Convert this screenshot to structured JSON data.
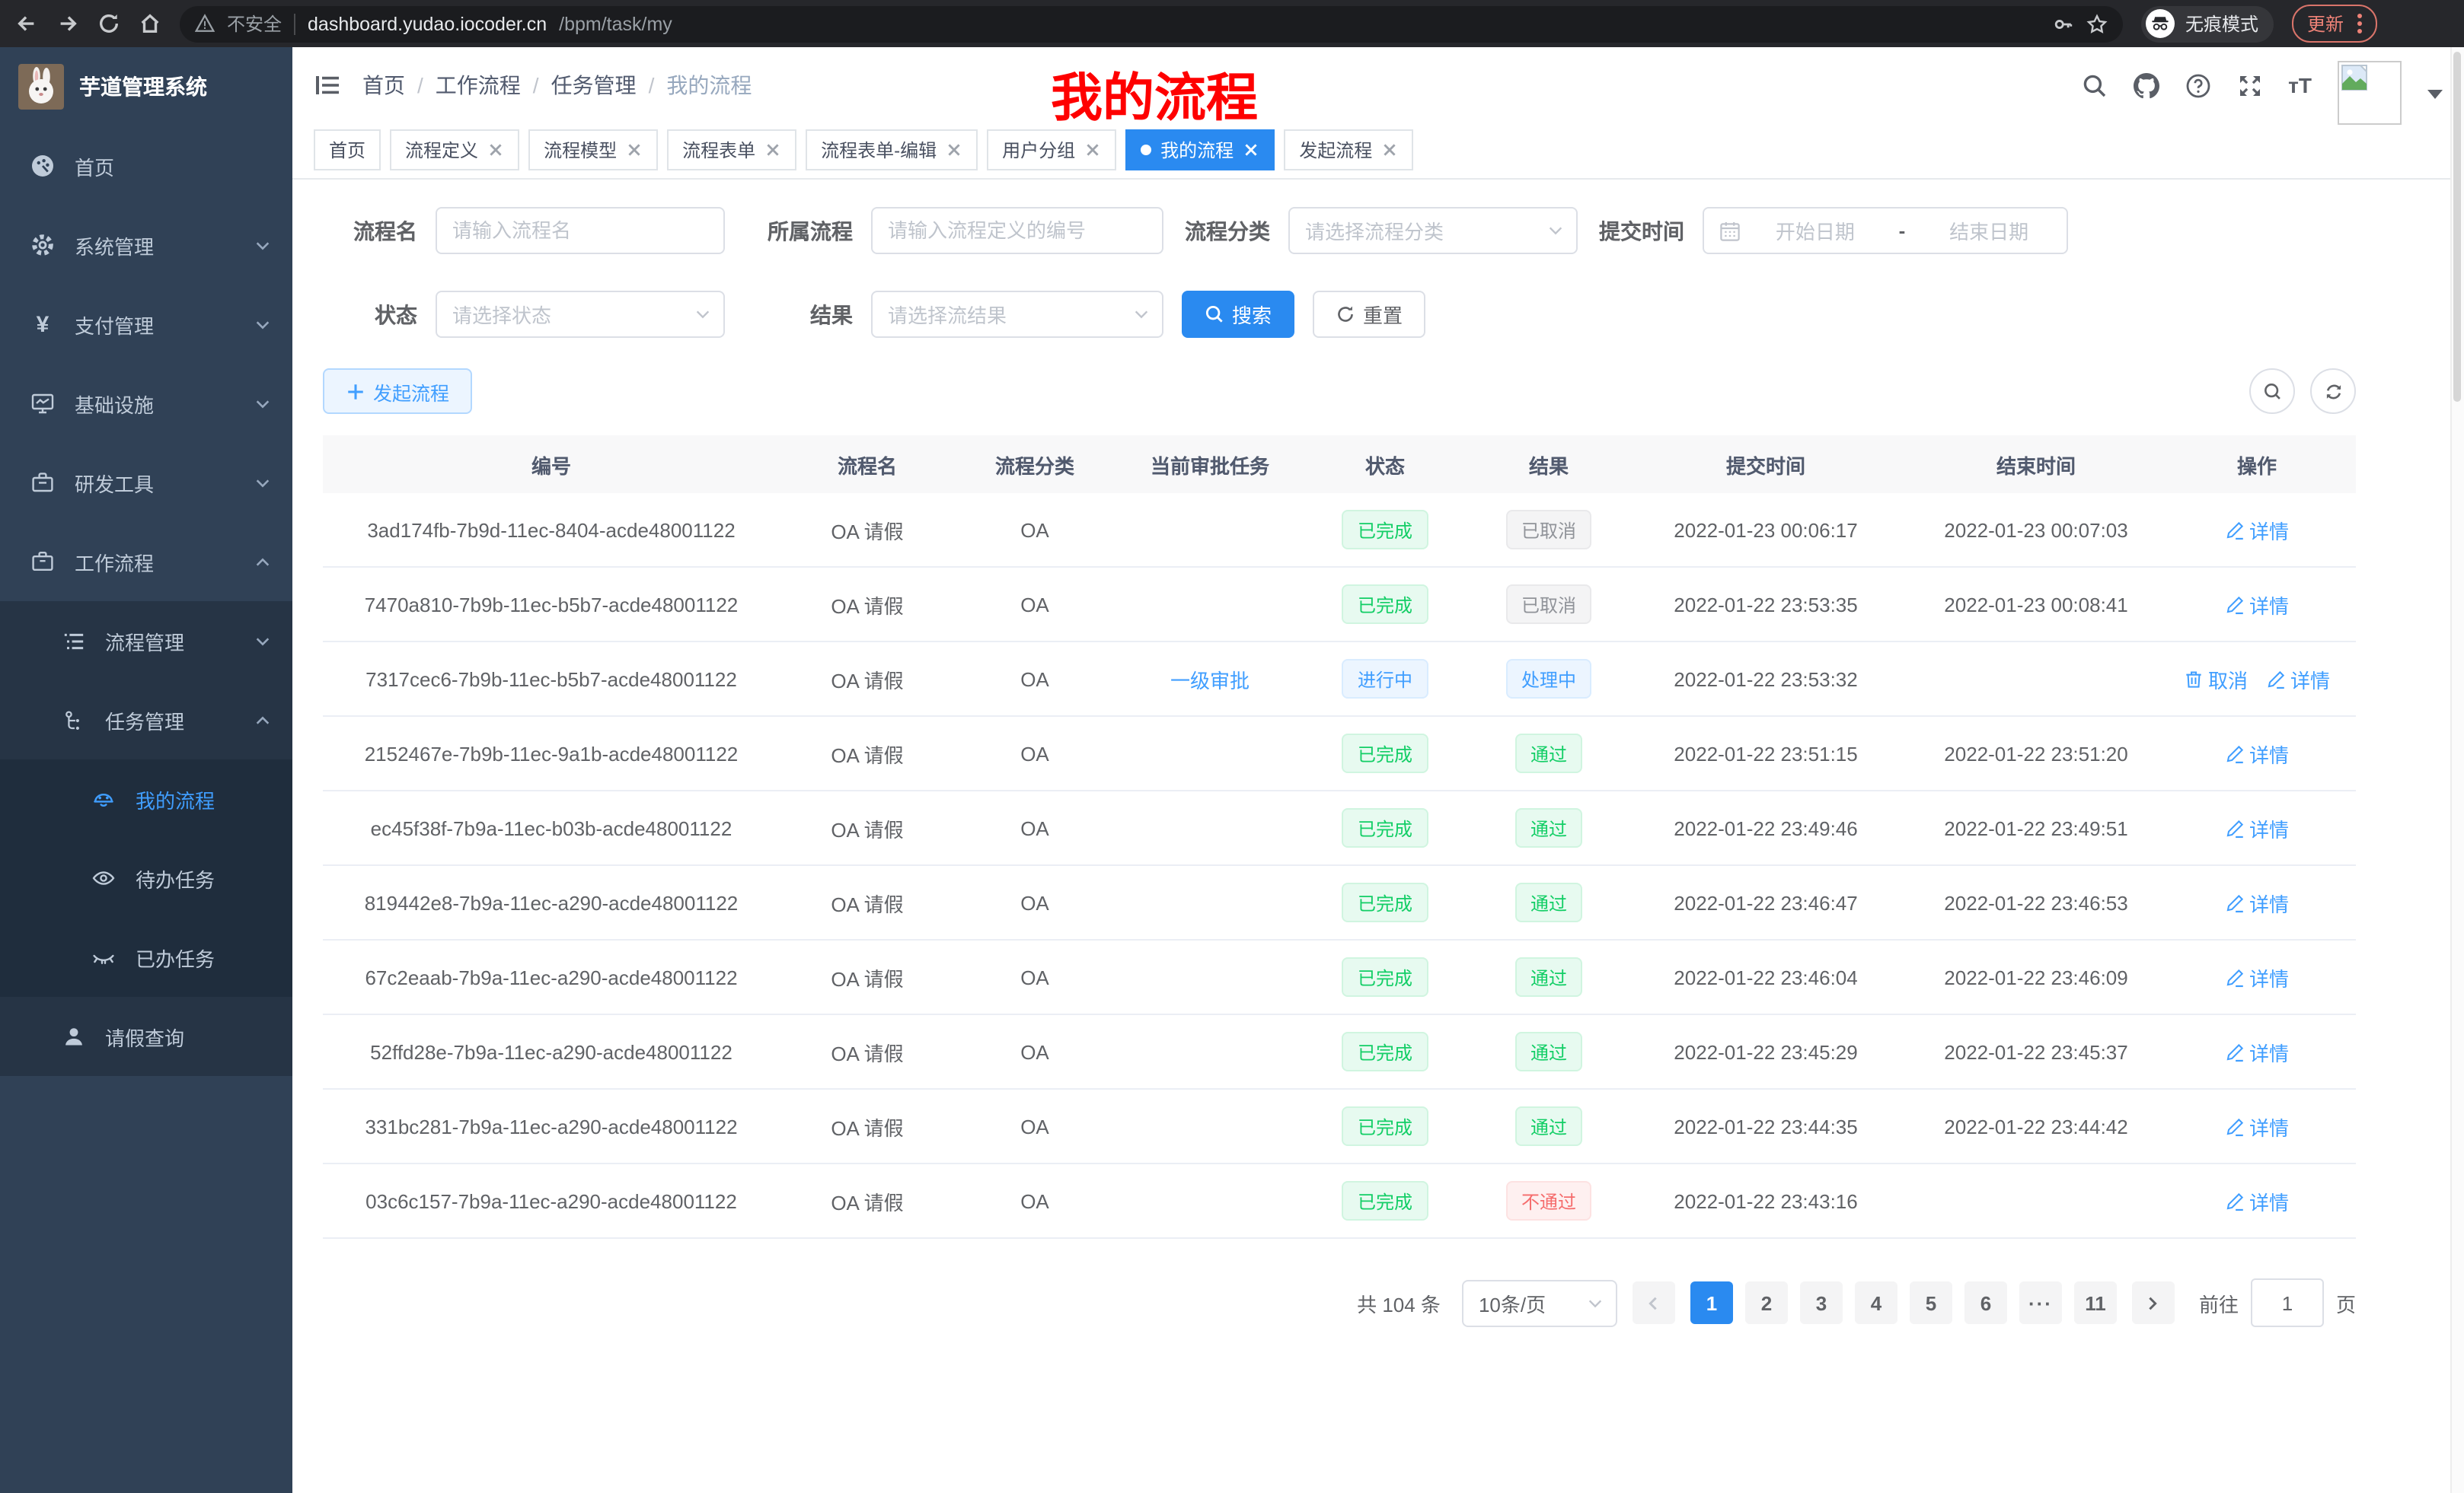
{
  "colors": {
    "primary": "#409eff",
    "tab_active": "#2a8af0",
    "success": "#13ce66",
    "danger": "#f56c6c",
    "info": "#909399",
    "annotation_red": "#fe0000",
    "sidebar_bg": "#304156",
    "submenu_bg": "#263445",
    "submenu2_bg": "#1f2d3d"
  },
  "browser": {
    "security_label": "不安全",
    "url_host": "dashboard.yudao.iocoder.cn",
    "url_path": "/bpm/task/my",
    "incognito_label": "无痕模式",
    "update_label": "更新"
  },
  "sidebar": {
    "app_title": "芋道管理系统",
    "menu": [
      {
        "label": "首页",
        "icon": "dashboard-icon"
      },
      {
        "label": "系统管理",
        "icon": "gear-icon"
      },
      {
        "label": "支付管理",
        "icon": "yen-icon"
      },
      {
        "label": "基础设施",
        "icon": "monitor-icon"
      },
      {
        "label": "研发工具",
        "icon": "toolbox-icon"
      },
      {
        "label": "工作流程",
        "icon": "briefcase-icon"
      },
      {
        "label": "流程管理",
        "icon": "list-icon"
      },
      {
        "label": "任务管理",
        "icon": "tree-icon"
      },
      {
        "label": "我的流程",
        "icon": "robot-icon",
        "active": true
      },
      {
        "label": "待办任务",
        "icon": "eye-icon"
      },
      {
        "label": "已办任务",
        "icon": "eye-closed-icon"
      },
      {
        "label": "请假查询",
        "icon": "user-icon"
      }
    ]
  },
  "header": {
    "breadcrumb": [
      "首页",
      "工作流程",
      "任务管理",
      "我的流程"
    ],
    "annotation": "我的流程"
  },
  "tabs": [
    {
      "label": "首页"
    },
    {
      "label": "流程定义"
    },
    {
      "label": "流程模型"
    },
    {
      "label": "流程表单"
    },
    {
      "label": "流程表单-编辑"
    },
    {
      "label": "用户分组"
    },
    {
      "label": "我的流程",
      "active": true
    },
    {
      "label": "发起流程"
    }
  ],
  "filters": {
    "name_label": "流程名",
    "name_placeholder": "请输入流程名",
    "definition_label": "所属流程",
    "definition_placeholder": "请输入流程定义的编号",
    "category_label": "流程分类",
    "category_placeholder": "请选择流程分类",
    "time_label": "提交时间",
    "date_start_placeholder": "开始日期",
    "date_separator": "-",
    "date_end_placeholder": "结束日期",
    "status_label": "状态",
    "status_placeholder": "请选择状态",
    "result_label": "结果",
    "result_placeholder": "请选择流结果",
    "search_label": "搜索",
    "reset_label": "重置"
  },
  "toolbar": {
    "create_label": "发起流程"
  },
  "table": {
    "columns": [
      "编号",
      "流程名",
      "流程分类",
      "当前审批任务",
      "状态",
      "结果",
      "提交时间",
      "结束时间",
      "操作"
    ],
    "rows": [
      {
        "id": "3ad174fb-7b9d-11ec-8404-acde48001122",
        "name": "OA 请假",
        "category": "OA",
        "task": "",
        "status": {
          "label": "已完成",
          "type": "success"
        },
        "result": {
          "label": "已取消",
          "type": "info"
        },
        "submit_time": "2022-01-23 00:06:17",
        "end_time": "2022-01-23 00:07:03",
        "actions": [
          {
            "label": "详情",
            "icon": "edit-icon"
          }
        ]
      },
      {
        "id": "7470a810-7b9b-11ec-b5b7-acde48001122",
        "name": "OA 请假",
        "category": "OA",
        "task": "",
        "status": {
          "label": "已完成",
          "type": "success"
        },
        "result": {
          "label": "已取消",
          "type": "info"
        },
        "submit_time": "2022-01-22 23:53:35",
        "end_time": "2022-01-23 00:08:41",
        "actions": [
          {
            "label": "详情",
            "icon": "edit-icon"
          }
        ]
      },
      {
        "id": "7317cec6-7b9b-11ec-b5b7-acde48001122",
        "name": "OA 请假",
        "category": "OA",
        "task": "一级审批",
        "status": {
          "label": "进行中",
          "type": "primary"
        },
        "result": {
          "label": "处理中",
          "type": "primary"
        },
        "submit_time": "2022-01-22 23:53:32",
        "end_time": "",
        "actions": [
          {
            "label": "取消",
            "icon": "trash-icon"
          },
          {
            "label": "详情",
            "icon": "edit-icon"
          }
        ]
      },
      {
        "id": "2152467e-7b9b-11ec-9a1b-acde48001122",
        "name": "OA 请假",
        "category": "OA",
        "task": "",
        "status": {
          "label": "已完成",
          "type": "success"
        },
        "result": {
          "label": "通过",
          "type": "success"
        },
        "submit_time": "2022-01-22 23:51:15",
        "end_time": "2022-01-22 23:51:20",
        "actions": [
          {
            "label": "详情",
            "icon": "edit-icon"
          }
        ]
      },
      {
        "id": "ec45f38f-7b9a-11ec-b03b-acde48001122",
        "name": "OA 请假",
        "category": "OA",
        "task": "",
        "status": {
          "label": "已完成",
          "type": "success"
        },
        "result": {
          "label": "通过",
          "type": "success"
        },
        "submit_time": "2022-01-22 23:49:46",
        "end_time": "2022-01-22 23:49:51",
        "actions": [
          {
            "label": "详情",
            "icon": "edit-icon"
          }
        ]
      },
      {
        "id": "819442e8-7b9a-11ec-a290-acde48001122",
        "name": "OA 请假",
        "category": "OA",
        "task": "",
        "status": {
          "label": "已完成",
          "type": "success"
        },
        "result": {
          "label": "通过",
          "type": "success"
        },
        "submit_time": "2022-01-22 23:46:47",
        "end_time": "2022-01-22 23:46:53",
        "actions": [
          {
            "label": "详情",
            "icon": "edit-icon"
          }
        ]
      },
      {
        "id": "67c2eaab-7b9a-11ec-a290-acde48001122",
        "name": "OA 请假",
        "category": "OA",
        "task": "",
        "status": {
          "label": "已完成",
          "type": "success"
        },
        "result": {
          "label": "通过",
          "type": "success"
        },
        "submit_time": "2022-01-22 23:46:04",
        "end_time": "2022-01-22 23:46:09",
        "actions": [
          {
            "label": "详情",
            "icon": "edit-icon"
          }
        ]
      },
      {
        "id": "52ffd28e-7b9a-11ec-a290-acde48001122",
        "name": "OA 请假",
        "category": "OA",
        "task": "",
        "status": {
          "label": "已完成",
          "type": "success"
        },
        "result": {
          "label": "通过",
          "type": "success"
        },
        "submit_time": "2022-01-22 23:45:29",
        "end_time": "2022-01-22 23:45:37",
        "actions": [
          {
            "label": "详情",
            "icon": "edit-icon"
          }
        ]
      },
      {
        "id": "331bc281-7b9a-11ec-a290-acde48001122",
        "name": "OA 请假",
        "category": "OA",
        "task": "",
        "status": {
          "label": "已完成",
          "type": "success"
        },
        "result": {
          "label": "通过",
          "type": "success"
        },
        "submit_time": "2022-01-22 23:44:35",
        "end_time": "2022-01-22 23:44:42",
        "actions": [
          {
            "label": "详情",
            "icon": "edit-icon"
          }
        ]
      },
      {
        "id": "03c6c157-7b9a-11ec-a290-acde48001122",
        "name": "OA 请假",
        "category": "OA",
        "task": "",
        "status": {
          "label": "已完成",
          "type": "success"
        },
        "result": {
          "label": "不通过",
          "type": "danger"
        },
        "submit_time": "2022-01-22 23:43:16",
        "end_time": "",
        "actions": [
          {
            "label": "详情",
            "icon": "edit-icon"
          }
        ]
      }
    ]
  },
  "pagination": {
    "total_label": "共 104 条",
    "page_size": "10条/页",
    "pages": [
      "1",
      "2",
      "3",
      "4",
      "5",
      "6",
      "...",
      "11"
    ],
    "active_page": "1",
    "goto_label": "前往",
    "goto_value": "1",
    "goto_suffix": "页"
  }
}
